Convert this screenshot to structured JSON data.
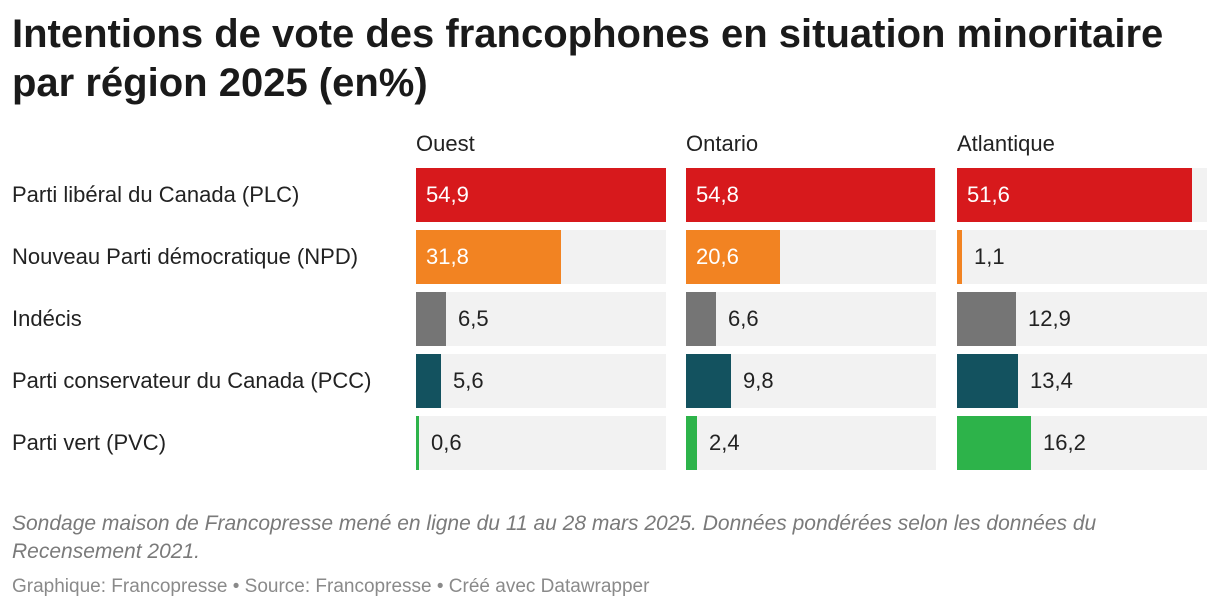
{
  "chart_data": {
    "type": "bar",
    "title": "Intentions de vote des francophones en situation minoritaire par région 2025 (en%)",
    "panels": [
      "Ouest",
      "Ontario",
      "Atlantique"
    ],
    "categories": [
      "Parti libéral du Canada (PLC)",
      "Nouveau Parti démocratique (NPD)",
      "Indécis",
      "Parti conservateur du Canada (PCC)",
      "Parti vert (PVC)"
    ],
    "colors": [
      "#d7191c",
      "#f28322",
      "#757575",
      "#13525f",
      "#2db34a"
    ],
    "series": [
      {
        "name": "Ouest",
        "values": [
          54.9,
          31.8,
          6.5,
          5.6,
          0.6
        ],
        "labels": [
          "54,9",
          "31,8",
          "6,5",
          "5,6",
          "0,6"
        ]
      },
      {
        "name": "Ontario",
        "values": [
          54.8,
          20.6,
          6.6,
          9.8,
          2.4
        ],
        "labels": [
          "54,8",
          "20,6",
          "6,6",
          "9,8",
          "2,4"
        ]
      },
      {
        "name": "Atlantique",
        "values": [
          51.6,
          1.1,
          12.9,
          13.4,
          16.2
        ],
        "labels": [
          "51,6",
          "1,1",
          "12,9",
          "13,4",
          "16,2"
        ]
      }
    ],
    "xlim": [
      0,
      55
    ],
    "grid": false,
    "legend": "none",
    "note": "Sondage maison de Francopresse mené en ligne du 11 au 28 mars 2025. Données pondérées selon les données du Recensement 2021.",
    "footer": "Graphique: Francopresse • Source: Francopresse • Créé avec Datawrapper"
  }
}
